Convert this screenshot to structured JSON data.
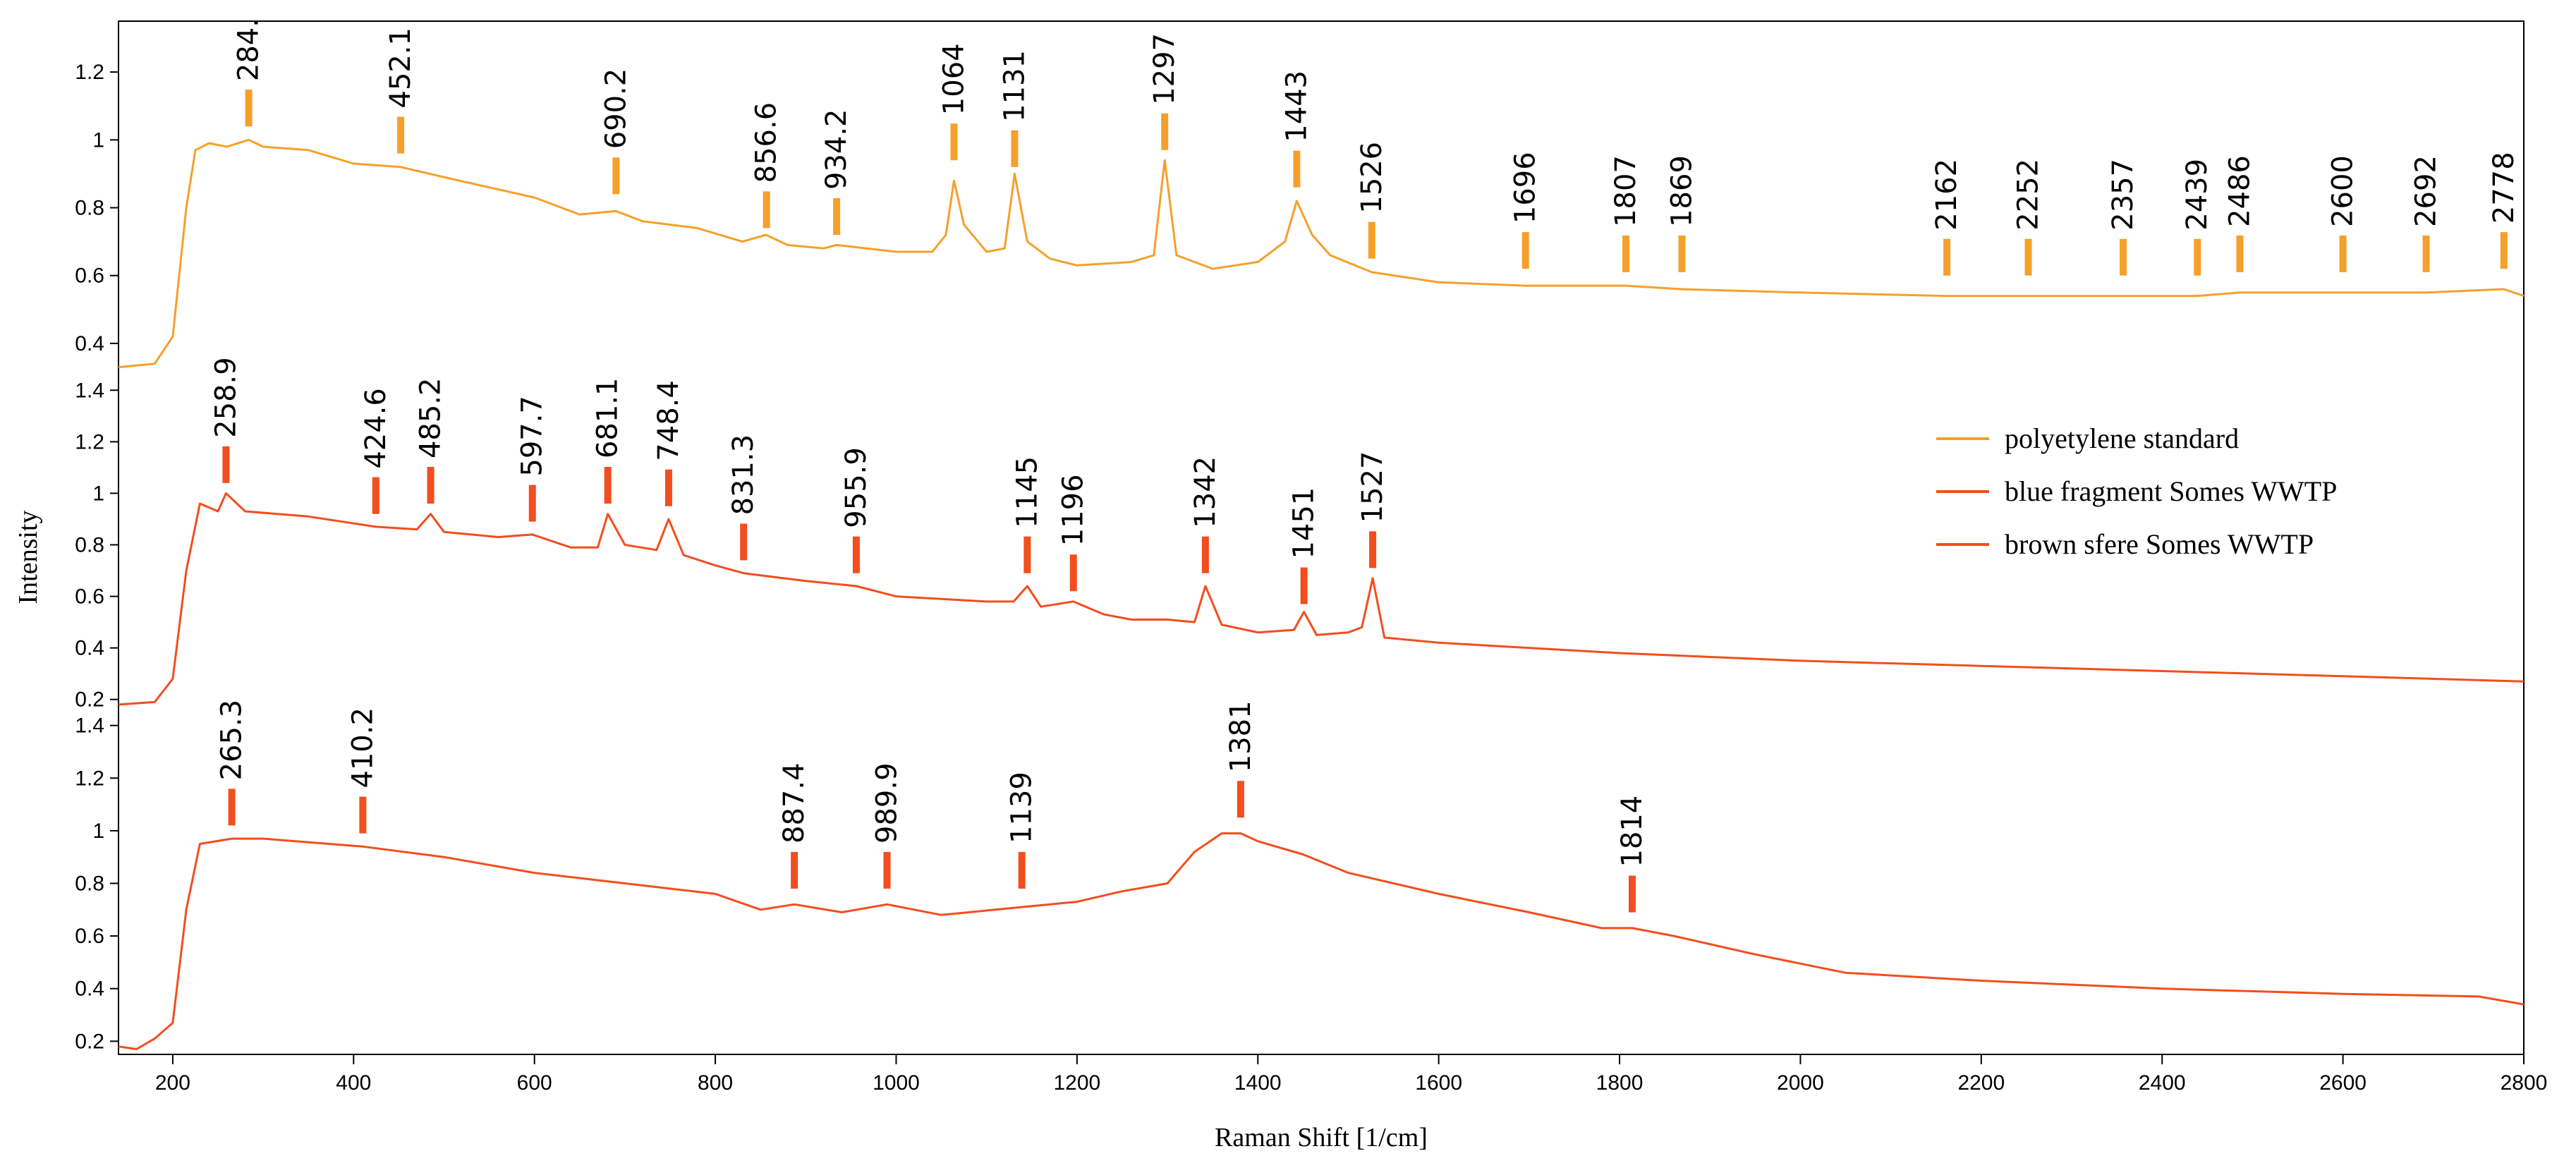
{
  "chart_data": {
    "type": "line",
    "xlabel": "Raman Shift [1/cm]",
    "ylabel": "Intensity",
    "xlim": [
      140,
      2800
    ],
    "x_ticks": [
      200,
      400,
      600,
      800,
      1000,
      1200,
      1400,
      1600,
      1800,
      2000,
      2200,
      2400,
      2600,
      2800
    ],
    "grid": false,
    "legend_position": "right",
    "legend": [
      "polyetylene standard",
      "blue fragment Somes WWTP",
      "brown sfere Somes WWTP"
    ],
    "panels": [
      {
        "name": "polyetylene standard",
        "color": "#F5A02A",
        "ylim": [
          0.3,
          1.35
        ],
        "y_ticks": [
          "0.4",
          "0.6",
          "0.8",
          "1",
          "1.2"
        ],
        "y_tick_values": [
          0.4,
          0.6,
          0.8,
          1.0,
          1.2
        ],
        "x": [
          140,
          180,
          200,
          215,
          225,
          240,
          260,
          284,
          300,
          350,
          400,
          452,
          500,
          550,
          600,
          650,
          690,
          720,
          780,
          830,
          856,
          880,
          920,
          934,
          1000,
          1040,
          1055,
          1064,
          1075,
          1100,
          1120,
          1131,
          1145,
          1170,
          1200,
          1260,
          1285,
          1297,
          1310,
          1350,
          1400,
          1430,
          1443,
          1460,
          1480,
          1526,
          1600,
          1696,
          1807,
          1869,
          2000,
          2162,
          2252,
          2357,
          2439,
          2486,
          2600,
          2692,
          2778,
          2800
        ],
        "y": [
          0.33,
          0.34,
          0.42,
          0.8,
          0.97,
          0.99,
          0.98,
          1.0,
          0.98,
          0.97,
          0.93,
          0.92,
          0.89,
          0.86,
          0.83,
          0.78,
          0.79,
          0.76,
          0.74,
          0.7,
          0.72,
          0.69,
          0.68,
          0.69,
          0.67,
          0.67,
          0.72,
          0.88,
          0.75,
          0.67,
          0.68,
          0.9,
          0.7,
          0.65,
          0.63,
          0.64,
          0.66,
          0.94,
          0.66,
          0.62,
          0.64,
          0.7,
          0.82,
          0.72,
          0.66,
          0.61,
          0.58,
          0.57,
          0.57,
          0.56,
          0.55,
          0.54,
          0.54,
          0.54,
          0.54,
          0.55,
          0.55,
          0.55,
          0.56,
          0.54
        ],
        "peak_labels": [
          "284.",
          "452.1",
          "690.2",
          "856.6",
          "934.2",
          "1064",
          "1131",
          "1297",
          "1443",
          "1526",
          "1696",
          "1807",
          "1869",
          "2162",
          "2252",
          "2357",
          "2439",
          "2486",
          "2600",
          "2692",
          "2778"
        ],
        "peak_x": [
          284,
          452.1,
          690.2,
          856.6,
          934.2,
          1064,
          1131,
          1297,
          1443,
          1526,
          1696,
          1807,
          1869,
          2162,
          2252,
          2357,
          2439,
          2486,
          2600,
          2692,
          2778
        ],
        "peak_marker_y": [
          1.04,
          0.96,
          0.84,
          0.74,
          0.72,
          0.94,
          0.92,
          0.97,
          0.86,
          0.65,
          0.62,
          0.61,
          0.61,
          0.6,
          0.6,
          0.6,
          0.6,
          0.61,
          0.61,
          0.61,
          0.62
        ]
      },
      {
        "name": "blue fragment Somes WWTP",
        "color": "#F24E1E",
        "ylim": [
          0.15,
          1.45
        ],
        "y_ticks": [
          "0.2",
          "0.4",
          "0.6",
          "0.8",
          "1",
          "1.2",
          "1.4"
        ],
        "y_tick_values": [
          0.2,
          0.4,
          0.6,
          0.8,
          1.0,
          1.2,
          1.4
        ],
        "x": [
          140,
          180,
          200,
          215,
          230,
          250,
          258.9,
          280,
          350,
          424.6,
          470,
          485.2,
          500,
          560,
          597.7,
          640,
          670,
          681.1,
          700,
          735,
          748.4,
          765,
          800,
          831.3,
          900,
          955.9,
          1000,
          1050,
          1100,
          1130,
          1145,
          1160,
          1196,
          1230,
          1260,
          1300,
          1330,
          1342,
          1360,
          1400,
          1440,
          1451,
          1465,
          1500,
          1515,
          1527,
          1540,
          1600,
          1800,
          2000,
          2200,
          2400,
          2600,
          2800
        ],
        "y": [
          0.18,
          0.19,
          0.28,
          0.7,
          0.96,
          0.93,
          1.0,
          0.93,
          0.91,
          0.87,
          0.86,
          0.92,
          0.85,
          0.83,
          0.84,
          0.79,
          0.79,
          0.92,
          0.8,
          0.78,
          0.9,
          0.76,
          0.72,
          0.69,
          0.66,
          0.64,
          0.6,
          0.59,
          0.58,
          0.58,
          0.64,
          0.56,
          0.58,
          0.53,
          0.51,
          0.51,
          0.5,
          0.64,
          0.49,
          0.46,
          0.47,
          0.54,
          0.45,
          0.46,
          0.48,
          0.67,
          0.44,
          0.42,
          0.38,
          0.35,
          0.33,
          0.31,
          0.29,
          0.27
        ],
        "peak_labels": [
          "258.9",
          "424.6",
          "485.2",
          "597.7",
          "681.1",
          "748.4",
          "831.3",
          "955.9",
          "1145",
          "1196",
          "1342",
          "1451",
          "1527"
        ],
        "peak_x": [
          258.9,
          424.6,
          485.2,
          597.7,
          681.1,
          748.4,
          831.3,
          955.9,
          1145,
          1196,
          1342,
          1451,
          1527
        ],
        "peak_marker_y": [
          1.04,
          0.92,
          0.96,
          0.89,
          0.96,
          0.95,
          0.74,
          0.69,
          0.69,
          0.62,
          0.69,
          0.57,
          0.71
        ]
      },
      {
        "name": "brown sfere Somes WWTP",
        "color": "#F24E1E",
        "ylim": [
          0.15,
          1.45
        ],
        "y_ticks": [
          "0.2",
          "0.4",
          "0.6",
          "0.8",
          "1",
          "1.2",
          "1.4"
        ],
        "y_tick_values": [
          0.2,
          0.4,
          0.6,
          0.8,
          1.0,
          1.2,
          1.4
        ],
        "x": [
          140,
          160,
          180,
          200,
          215,
          230,
          265.3,
          300,
          410.2,
          500,
          600,
          700,
          800,
          850,
          887.4,
          940,
          989.9,
          1050,
          1139,
          1200,
          1250,
          1300,
          1330,
          1360,
          1381,
          1400,
          1450,
          1500,
          1600,
          1700,
          1780,
          1814,
          1860,
          1950,
          2050,
          2200,
          2400,
          2600,
          2750,
          2800
        ],
        "y": [
          0.18,
          0.17,
          0.21,
          0.27,
          0.7,
          0.95,
          0.97,
          0.97,
          0.94,
          0.9,
          0.84,
          0.8,
          0.76,
          0.7,
          0.72,
          0.69,
          0.72,
          0.68,
          0.71,
          0.73,
          0.77,
          0.8,
          0.92,
          0.99,
          0.99,
          0.96,
          0.91,
          0.84,
          0.76,
          0.69,
          0.63,
          0.63,
          0.6,
          0.53,
          0.46,
          0.43,
          0.4,
          0.38,
          0.37,
          0.34
        ],
        "peak_labels": [
          "265.3",
          "410.2",
          "887.4",
          "989.9",
          "1139",
          "1381",
          "1814"
        ],
        "peak_x": [
          265.3,
          410.2,
          887.4,
          989.9,
          1139,
          1381,
          1814
        ],
        "peak_marker_y": [
          1.02,
          0.99,
          0.78,
          0.78,
          0.78,
          1.05,
          0.69
        ]
      }
    ]
  }
}
